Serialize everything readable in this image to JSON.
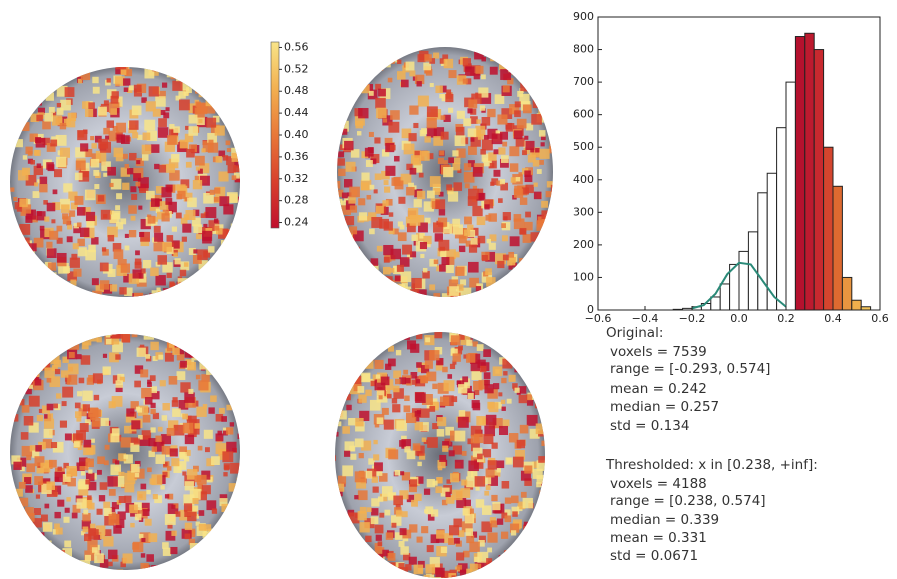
{
  "chart_data": {
    "type": "histogram",
    "bins": [
      -0.28,
      -0.24,
      -0.2,
      -0.16,
      -0.12,
      -0.08,
      -0.04,
      0,
      0.04,
      0.08,
      0.12,
      0.16,
      0.2,
      0.24,
      0.28,
      0.32,
      0.36,
      0.4,
      0.44,
      0.48,
      0.52,
      0.56
    ],
    "values": [
      2,
      5,
      10,
      20,
      40,
      80,
      140,
      180,
      240,
      360,
      420,
      560,
      700,
      840,
      850,
      800,
      500,
      380,
      100,
      30,
      10
    ],
    "colors": [
      "#ffffff",
      "#ffffff",
      "#ffffff",
      "#ffffff",
      "#ffffff",
      "#ffffff",
      "#ffffff",
      "#ffffff",
      "#ffffff",
      "#ffffff",
      "#ffffff",
      "#ffffff",
      "#ffffff",
      "#b5112e",
      "#bd1a2f",
      "#c8292f",
      "#d4452e",
      "#dd6a30",
      "#e89540",
      "#f0b04c",
      "#f3c45a"
    ],
    "edge_color": "#222222",
    "fit": {
      "color": "#2a8a78",
      "x": [
        -0.2,
        -0.15,
        -0.1,
        -0.05,
        0,
        0.05,
        0.1,
        0.15,
        0.2
      ],
      "values": [
        5,
        15,
        50,
        110,
        145,
        140,
        90,
        40,
        10
      ]
    },
    "xlim": [
      -0.6,
      0.6
    ],
    "xticks": [
      {
        "value": -0.6,
        "label": "−0.6"
      },
      {
        "value": -0.4,
        "label": "−0.4"
      },
      {
        "value": -0.2,
        "label": "−0.2"
      },
      {
        "value": 0,
        "label": "0.0"
      },
      0.2,
      0.4,
      0.6
    ],
    "ylim": [
      0,
      900
    ],
    "yticks": [
      0,
      100,
      200,
      300,
      400,
      500,
      600,
      700,
      800,
      900
    ]
  },
  "colorbar": {
    "lim": [
      0.23,
      0.57
    ],
    "colormap": [
      "#c0102e",
      "#d8402c",
      "#e87838",
      "#f2b050",
      "#f8e488"
    ],
    "ticks": [
      0.56,
      0.52,
      0.48,
      0.44,
      {
        "value": 0.4,
        "label": "0.40"
      },
      0.36,
      0.32,
      0.28,
      0.24
    ]
  },
  "stats": {
    "original": {
      "title": "Original:",
      "lines": [
        "voxels = 7539",
        "range = [-0.293, 0.574]",
        "mean = 0.242",
        "median = 0.257",
        "std = 0.134"
      ]
    },
    "thresholded": {
      "title": "Thresholded: x in [0.238, +inf]:",
      "lines": [
        "voxels = 4188",
        "range = [0.238, 0.574]",
        "median = 0.339",
        "mean = 0.331",
        "std = 0.0671"
      ]
    }
  }
}
